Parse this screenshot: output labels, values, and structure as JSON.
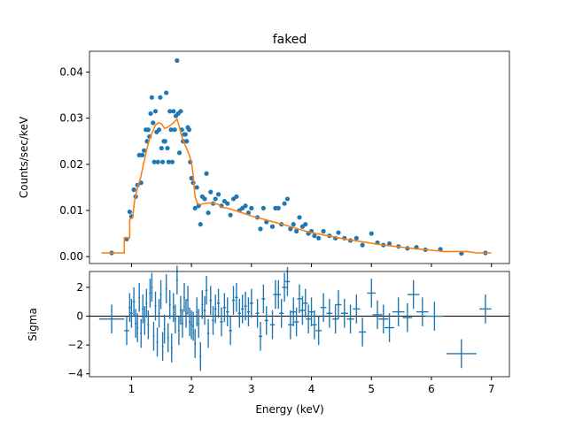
{
  "chart_data": [
    {
      "type": "scatter",
      "title": "faked",
      "xlabel": "",
      "ylabel": "Counts/sec/keV",
      "xlim": [
        0.3,
        7.3
      ],
      "ylim": [
        -0.0015,
        0.0445
      ],
      "yticks": [
        0.0,
        0.01,
        0.02,
        0.03,
        0.04
      ],
      "ytick_labels": [
        "0.00",
        "0.01",
        "0.02",
        "0.03",
        "0.04"
      ],
      "grid": false,
      "colors": {
        "data": "#1f77b4",
        "model": "#ff7f0e"
      },
      "data_points": [
        [
          0.67,
          0.0008
        ],
        [
          0.92,
          0.0038
        ],
        [
          0.97,
          0.0097
        ],
        [
          1.0,
          0.0087
        ],
        [
          1.04,
          0.0145
        ],
        [
          1.07,
          0.013
        ],
        [
          1.1,
          0.0155
        ],
        [
          1.13,
          0.022
        ],
        [
          1.16,
          0.016
        ],
        [
          1.18,
          0.022
        ],
        [
          1.21,
          0.023
        ],
        [
          1.24,
          0.0275
        ],
        [
          1.26,
          0.025
        ],
        [
          1.28,
          0.0275
        ],
        [
          1.3,
          0.026
        ],
        [
          1.32,
          0.031
        ],
        [
          1.34,
          0.0345
        ],
        [
          1.36,
          0.029
        ],
        [
          1.38,
          0.0205
        ],
        [
          1.4,
          0.0315
        ],
        [
          1.42,
          0.027
        ],
        [
          1.44,
          0.0205
        ],
        [
          1.46,
          0.0275
        ],
        [
          1.48,
          0.0345
        ],
        [
          1.5,
          0.0235
        ],
        [
          1.52,
          0.0205
        ],
        [
          1.54,
          0.025
        ],
        [
          1.56,
          0.025
        ],
        [
          1.58,
          0.0355
        ],
        [
          1.6,
          0.0235
        ],
        [
          1.62,
          0.0205
        ],
        [
          1.64,
          0.0315
        ],
        [
          1.66,
          0.0275
        ],
        [
          1.68,
          0.0205
        ],
        [
          1.7,
          0.0315
        ],
        [
          1.72,
          0.0275
        ],
        [
          1.74,
          0.0305
        ],
        [
          1.76,
          0.0425
        ],
        [
          1.78,
          0.031
        ],
        [
          1.8,
          0.0225
        ],
        [
          1.82,
          0.0315
        ],
        [
          1.84,
          0.0275
        ],
        [
          1.86,
          0.025
        ],
        [
          1.88,
          0.0265
        ],
        [
          1.9,
          0.0265
        ],
        [
          1.92,
          0.025
        ],
        [
          1.94,
          0.028
        ],
        [
          1.96,
          0.0275
        ],
        [
          1.98,
          0.0205
        ],
        [
          2.0,
          0.017
        ],
        [
          2.03,
          0.016
        ],
        [
          2.06,
          0.0105
        ],
        [
          2.09,
          0.015
        ],
        [
          2.12,
          0.011
        ],
        [
          2.15,
          0.007
        ],
        [
          2.18,
          0.013
        ],
        [
          2.22,
          0.0125
        ],
        [
          2.25,
          0.018
        ],
        [
          2.28,
          0.0095
        ],
        [
          2.32,
          0.014
        ],
        [
          2.36,
          0.0115
        ],
        [
          2.4,
          0.0125
        ],
        [
          2.45,
          0.0135
        ],
        [
          2.5,
          0.011
        ],
        [
          2.55,
          0.012
        ],
        [
          2.6,
          0.0115
        ],
        [
          2.65,
          0.009
        ],
        [
          2.7,
          0.0125
        ],
        [
          2.75,
          0.013
        ],
        [
          2.8,
          0.01
        ],
        [
          2.85,
          0.0105
        ],
        [
          2.9,
          0.011
        ],
        [
          2.95,
          0.0095
        ],
        [
          3.0,
          0.0105
        ],
        [
          3.1,
          0.0085
        ],
        [
          3.15,
          0.006
        ],
        [
          3.2,
          0.0105
        ],
        [
          3.25,
          0.0075
        ],
        [
          3.35,
          0.0065
        ],
        [
          3.4,
          0.0105
        ],
        [
          3.45,
          0.0105
        ],
        [
          3.5,
          0.007
        ],
        [
          3.55,
          0.0115
        ],
        [
          3.6,
          0.0125
        ],
        [
          3.65,
          0.006
        ],
        [
          3.7,
          0.007
        ],
        [
          3.75,
          0.0055
        ],
        [
          3.8,
          0.0085
        ],
        [
          3.85,
          0.0065
        ],
        [
          3.9,
          0.007
        ],
        [
          3.95,
          0.005
        ],
        [
          4.0,
          0.0055
        ],
        [
          4.05,
          0.0045
        ],
        [
          4.12,
          0.004
        ],
        [
          4.2,
          0.0055
        ],
        [
          4.3,
          0.0045
        ],
        [
          4.4,
          0.004
        ],
        [
          4.45,
          0.0052
        ],
        [
          4.55,
          0.004
        ],
        [
          4.65,
          0.0035
        ],
        [
          4.75,
          0.004
        ],
        [
          4.85,
          0.0025
        ],
        [
          5.0,
          0.005
        ],
        [
          5.1,
          0.003
        ],
        [
          5.2,
          0.0025
        ],
        [
          5.3,
          0.0028
        ],
        [
          5.45,
          0.0022
        ],
        [
          5.6,
          0.0018
        ],
        [
          5.75,
          0.002
        ],
        [
          5.9,
          0.0015
        ],
        [
          6.15,
          0.0016
        ],
        [
          6.5,
          0.0007
        ],
        [
          6.9,
          0.0008
        ]
      ],
      "model_step": [
        [
          0.5,
          0.0008
        ],
        [
          0.88,
          0.0008
        ],
        [
          0.88,
          0.0041
        ],
        [
          0.97,
          0.0041
        ],
        [
          0.97,
          0.008
        ],
        [
          1.02,
          0.0085
        ],
        [
          1.05,
          0.012
        ],
        [
          1.1,
          0.015
        ],
        [
          1.15,
          0.017
        ],
        [
          1.2,
          0.02
        ],
        [
          1.25,
          0.023
        ],
        [
          1.3,
          0.0255
        ],
        [
          1.35,
          0.027
        ],
        [
          1.4,
          0.0285
        ],
        [
          1.45,
          0.029
        ],
        [
          1.5,
          0.0288
        ],
        [
          1.55,
          0.0278
        ],
        [
          1.6,
          0.028
        ],
        [
          1.65,
          0.0285
        ],
        [
          1.7,
          0.029
        ],
        [
          1.76,
          0.0298
        ],
        [
          1.8,
          0.028
        ],
        [
          1.85,
          0.0255
        ],
        [
          1.9,
          0.024
        ],
        [
          1.95,
          0.0225
        ],
        [
          2.0,
          0.0205
        ],
        [
          2.03,
          0.0175
        ],
        [
          2.06,
          0.013
        ],
        [
          2.1,
          0.0115
        ],
        [
          2.15,
          0.0113
        ],
        [
          2.25,
          0.0116
        ],
        [
          2.35,
          0.0116
        ],
        [
          2.45,
          0.0113
        ],
        [
          2.5,
          0.0107
        ],
        [
          2.6,
          0.0105
        ],
        [
          2.8,
          0.0097
        ],
        [
          3.0,
          0.0088
        ],
        [
          3.2,
          0.0081
        ],
        [
          3.4,
          0.0074
        ],
        [
          3.6,
          0.0067
        ],
        [
          3.8,
          0.0059
        ],
        [
          4.0,
          0.0052
        ],
        [
          4.2,
          0.0047
        ],
        [
          4.4,
          0.0042
        ],
        [
          4.6,
          0.0037
        ],
        [
          4.8,
          0.0033
        ],
        [
          5.0,
          0.0029
        ],
        [
          5.2,
          0.0025
        ],
        [
          5.4,
          0.0022
        ],
        [
          5.6,
          0.0019
        ],
        [
          5.8,
          0.0016
        ],
        [
          6.0,
          0.0014
        ],
        [
          6.2,
          0.0011
        ],
        [
          6.6,
          0.0011
        ],
        [
          6.75,
          0.0008
        ],
        [
          7.0,
          0.0008
        ]
      ]
    },
    {
      "type": "errorbar",
      "xlabel": "Energy (keV)",
      "ylabel": "Sigma",
      "xlim": [
        0.3,
        7.3
      ],
      "ylim": [
        -4.2,
        3.1
      ],
      "xticks": [
        1,
        2,
        3,
        4,
        5,
        6,
        7
      ],
      "xtick_labels": [
        "1",
        "2",
        "3",
        "4",
        "5",
        "6",
        "7"
      ],
      "yticks": [
        -4,
        -2,
        0,
        2
      ],
      "ytick_labels": [
        "−4",
        "−2",
        "0",
        "2"
      ],
      "zero_line": true,
      "color": "#1f77b4",
      "residuals": [
        [
          0.67,
          0.21,
          -0.2
        ],
        [
          0.92,
          0.04,
          -1.0
        ],
        [
          0.97,
          0.02,
          0.6
        ],
        [
          1.0,
          0.02,
          0.2
        ],
        [
          1.04,
          0.02,
          1.0
        ],
        [
          1.07,
          0.015,
          -0.5
        ],
        [
          1.1,
          0.015,
          -0.8
        ],
        [
          1.13,
          0.015,
          1.3
        ],
        [
          1.16,
          0.015,
          -1.2
        ],
        [
          1.19,
          0.015,
          0.5
        ],
        [
          1.22,
          0.015,
          -0.3
        ],
        [
          1.25,
          0.015,
          0.9
        ],
        [
          1.28,
          0.015,
          -0.6
        ],
        [
          1.31,
          0.015,
          1.6
        ],
        [
          1.34,
          0.015,
          2.0
        ],
        [
          1.37,
          0.015,
          -1.4
        ],
        [
          1.4,
          0.015,
          0.7
        ],
        [
          1.43,
          0.015,
          -1.8
        ],
        [
          1.46,
          0.015,
          0.2
        ],
        [
          1.49,
          0.015,
          1.5
        ],
        [
          1.52,
          0.015,
          -2.1
        ],
        [
          1.55,
          0.015,
          -0.9
        ],
        [
          1.58,
          0.015,
          1.9
        ],
        [
          1.61,
          0.015,
          -1.5
        ],
        [
          1.64,
          0.015,
          0.8
        ],
        [
          1.67,
          0.015,
          -2.2
        ],
        [
          1.7,
          0.015,
          0.6
        ],
        [
          1.73,
          0.015,
          -0.2
        ],
        [
          1.76,
          0.015,
          2.5
        ],
        [
          1.79,
          0.015,
          -1.0
        ],
        [
          1.82,
          0.015,
          0.4
        ],
        [
          1.85,
          0.015,
          -0.5
        ],
        [
          1.88,
          0.015,
          1.3
        ],
        [
          1.91,
          0.015,
          0.2
        ],
        [
          1.94,
          0.015,
          1.1
        ],
        [
          1.97,
          0.015,
          -0.4
        ],
        [
          2.0,
          0.015,
          -0.6
        ],
        [
          2.03,
          0.015,
          -0.7
        ],
        [
          2.06,
          0.015,
          -1.9
        ],
        [
          2.09,
          0.015,
          0.3
        ],
        [
          2.12,
          0.015,
          -0.5
        ],
        [
          2.15,
          0.015,
          -2.8
        ],
        [
          2.18,
          0.015,
          0.8
        ],
        [
          2.22,
          0.02,
          0.4
        ],
        [
          2.25,
          0.02,
          1.8
        ],
        [
          2.28,
          0.02,
          -1.2
        ],
        [
          2.32,
          0.02,
          1.1
        ],
        [
          2.36,
          0.02,
          -0.3
        ],
        [
          2.4,
          0.02,
          0.5
        ],
        [
          2.45,
          0.025,
          0.9
        ],
        [
          2.5,
          0.025,
          -0.4
        ],
        [
          2.55,
          0.025,
          0.6
        ],
        [
          2.6,
          0.025,
          0.3
        ],
        [
          2.65,
          0.025,
          -1.0
        ],
        [
          2.7,
          0.025,
          1.1
        ],
        [
          2.75,
          0.025,
          1.3
        ],
        [
          2.8,
          0.025,
          0.2
        ],
        [
          2.85,
          0.025,
          0.5
        ],
        [
          2.9,
          0.025,
          0.7
        ],
        [
          2.95,
          0.025,
          0.3
        ],
        [
          3.0,
          0.03,
          0.9
        ],
        [
          3.1,
          0.03,
          0.2
        ],
        [
          3.15,
          0.03,
          -1.4
        ],
        [
          3.2,
          0.03,
          1.2
        ],
        [
          3.25,
          0.03,
          -0.3
        ],
        [
          3.35,
          0.04,
          -0.6
        ],
        [
          3.4,
          0.04,
          1.5
        ],
        [
          3.45,
          0.04,
          1.5
        ],
        [
          3.5,
          0.04,
          0.2
        ],
        [
          3.55,
          0.04,
          2.0
        ],
        [
          3.6,
          0.04,
          2.4
        ],
        [
          3.65,
          0.04,
          -0.6
        ],
        [
          3.7,
          0.04,
          0.3
        ],
        [
          3.75,
          0.04,
          -0.4
        ],
        [
          3.8,
          0.04,
          1.2
        ],
        [
          3.85,
          0.04,
          0.4
        ],
        [
          3.9,
          0.04,
          0.9
        ],
        [
          3.95,
          0.04,
          -0.2
        ],
        [
          4.0,
          0.04,
          0.3
        ],
        [
          4.05,
          0.04,
          -0.6
        ],
        [
          4.12,
          0.05,
          -1.0
        ],
        [
          4.2,
          0.05,
          0.6
        ],
        [
          4.3,
          0.05,
          0.2
        ],
        [
          4.4,
          0.05,
          -0.2
        ],
        [
          4.45,
          0.05,
          0.8
        ],
        [
          4.55,
          0.06,
          0.2
        ],
        [
          4.65,
          0.06,
          -0.2
        ],
        [
          4.75,
          0.06,
          0.5
        ],
        [
          4.85,
          0.06,
          -1.1
        ],
        [
          5.0,
          0.07,
          1.6
        ],
        [
          5.1,
          0.08,
          0.1
        ],
        [
          5.2,
          0.08,
          -0.2
        ],
        [
          5.3,
          0.08,
          -0.8
        ],
        [
          5.45,
          0.1,
          0.3
        ],
        [
          5.6,
          0.08,
          -0.1
        ],
        [
          5.7,
          0.1,
          1.5
        ],
        [
          5.85,
          0.1,
          0.3
        ],
        [
          6.05,
          0.15,
          0.0
        ],
        [
          6.5,
          0.25,
          -2.6
        ],
        [
          6.9,
          0.1,
          0.5
        ]
      ]
    }
  ]
}
